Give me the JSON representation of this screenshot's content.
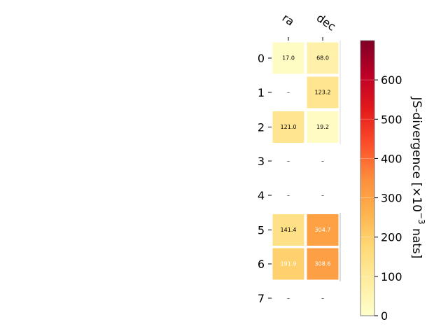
{
  "chart_data": {
    "type": "heatmap",
    "columns": [
      "ra",
      "dec"
    ],
    "rows": [
      "0",
      "1",
      "2",
      "3",
      "4",
      "5",
      "6",
      "7"
    ],
    "values": [
      [
        17.0,
        68.0
      ],
      [
        null,
        123.2
      ],
      [
        121.0,
        19.2
      ],
      [
        null,
        null
      ],
      [
        null,
        null
      ],
      [
        141.4,
        304.7
      ],
      [
        191.9,
        308.6
      ],
      [
        null,
        null
      ]
    ],
    "cell_labels": [
      [
        "17.0",
        "68.0"
      ],
      [
        "–",
        "123.2"
      ],
      [
        "121.0",
        "19.2"
      ],
      [
        "–",
        "–"
      ],
      [
        "–",
        "–"
      ],
      [
        "141.4",
        "304.7"
      ],
      [
        "191.9",
        "308.6"
      ],
      [
        "–",
        "–"
      ]
    ],
    "colorbar": {
      "label": "JS-divergence [×10",
      "label_exponent": "−3",
      "label_suffix": " nats]",
      "range": [
        0,
        700
      ],
      "ticks": [
        0,
        100,
        200,
        300,
        400,
        500,
        600
      ],
      "tick_labels": [
        "0",
        "100",
        "200",
        "300",
        "400",
        "500",
        "600"
      ],
      "colormap": "YlOrRd"
    },
    "grid": false,
    "legend": "colorbar-right"
  }
}
